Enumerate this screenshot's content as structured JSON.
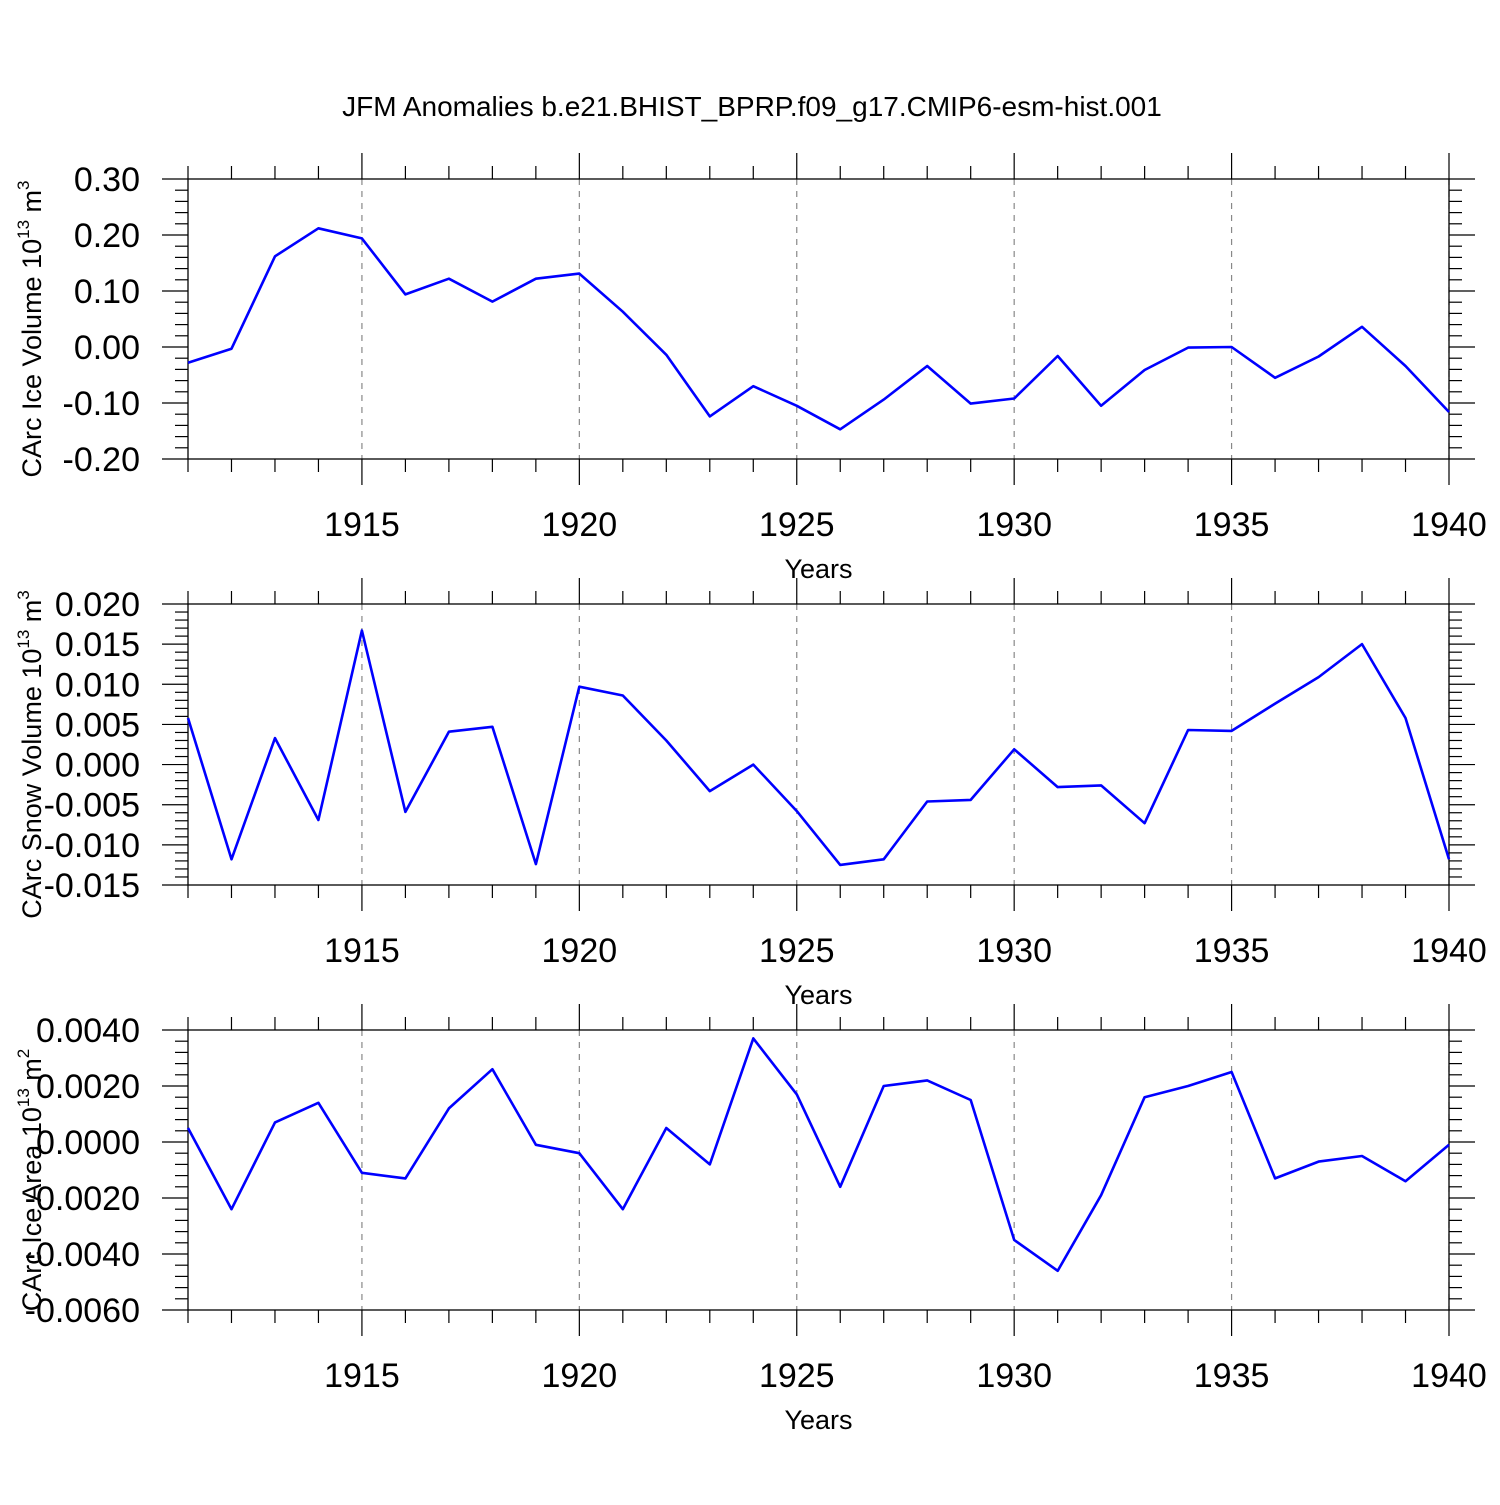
{
  "title": "JFM Anomalies b.e21.BHIST_BPRP.f09_g17.CMIP6-esm-hist.001",
  "line_color": "#0000ff",
  "grid_color": "#888888",
  "chart_data": [
    {
      "type": "line",
      "ylabel": "CArc Ice Volume 10",
      "ylabel_sup": "13",
      "ylabel_unit": "m",
      "ylabel_unit_sup": "3",
      "xlabel": "Years",
      "xlim": [
        1911,
        1940
      ],
      "ylim": [
        -0.2,
        0.3
      ],
      "yticks": [
        -0.2,
        -0.1,
        0.0,
        0.1,
        0.2,
        0.3
      ],
      "yticklabels": [
        "-0.20",
        "-0.10",
        "0.00",
        "0.10",
        "0.20",
        "0.30"
      ],
      "xticks": [
        1915,
        1920,
        1925,
        1930,
        1935,
        1940
      ],
      "xticklabels": [
        "1915",
        "1920",
        "1925",
        "1930",
        "1935",
        "1940"
      ],
      "x": [
        1911,
        1912,
        1913,
        1914,
        1915,
        1916,
        1917,
        1918,
        1919,
        1920,
        1921,
        1922,
        1923,
        1924,
        1925,
        1926,
        1927,
        1928,
        1929,
        1930,
        1931,
        1932,
        1933,
        1934,
        1935,
        1936,
        1937,
        1938,
        1939,
        1940
      ],
      "y": [
        -0.028,
        -0.003,
        0.162,
        0.212,
        0.194,
        0.094,
        0.122,
        0.081,
        0.122,
        0.131,
        0.063,
        -0.014,
        -0.124,
        -0.07,
        -0.105,
        -0.147,
        -0.094,
        -0.034,
        -0.101,
        -0.092,
        -0.016,
        -0.105,
        -0.041,
        -0.001,
        0.0,
        -0.055,
        -0.017,
        0.036,
        -0.034,
        -0.116
      ],
      "grid": "vertical dashed at major x ticks"
    },
    {
      "type": "line",
      "ylabel": "CArc Snow Volume 10",
      "ylabel_sup": "13",
      "ylabel_unit": "m",
      "ylabel_unit_sup": "3",
      "xlabel": "Years",
      "xlim": [
        1911,
        1940
      ],
      "ylim": [
        -0.015,
        0.02
      ],
      "yticks": [
        -0.015,
        -0.01,
        -0.005,
        0.0,
        0.005,
        0.01,
        0.015,
        0.02
      ],
      "yticklabels": [
        "-0.015",
        "-0.010",
        "-0.005",
        "0.000",
        "0.005",
        "0.010",
        "0.015",
        "0.020"
      ],
      "xticks": [
        1915,
        1920,
        1925,
        1930,
        1935,
        1940
      ],
      "xticklabels": [
        "1915",
        "1920",
        "1925",
        "1930",
        "1935",
        "1940"
      ],
      "x": [
        1911,
        1912,
        1913,
        1914,
        1915,
        1916,
        1917,
        1918,
        1919,
        1920,
        1921,
        1922,
        1923,
        1924,
        1925,
        1926,
        1927,
        1928,
        1929,
        1930,
        1931,
        1932,
        1933,
        1934,
        1935,
        1936,
        1937,
        1938,
        1939,
        1940
      ],
      "y": [
        0.0058,
        -0.0118,
        0.0033,
        -0.0069,
        0.0167,
        -0.0059,
        0.0041,
        0.0047,
        -0.0124,
        0.0097,
        0.0086,
        0.003,
        -0.0033,
        0.0,
        -0.0058,
        -0.0125,
        -0.0118,
        -0.0046,
        -0.0044,
        0.0019,
        -0.0028,
        -0.0026,
        -0.0073,
        0.0043,
        0.0042,
        0.0076,
        0.0109,
        0.015,
        0.0058,
        -0.0118
      ],
      "grid": "vertical dashed at major x ticks"
    },
    {
      "type": "line",
      "ylabel": "CArc Ice Area 10",
      "ylabel_sup": "13",
      "ylabel_unit": "m",
      "ylabel_unit_sup": "2",
      "xlabel": "Years",
      "xlim": [
        1911,
        1940
      ],
      "ylim": [
        -0.006,
        0.004
      ],
      "yticks": [
        -0.006,
        -0.004,
        -0.002,
        0.0,
        0.002,
        0.004
      ],
      "yticklabels": [
        "-0.0060",
        "-0.0040",
        "-0.0020",
        "0.0000",
        "0.0020",
        "0.0040"
      ],
      "xticks": [
        1915,
        1920,
        1925,
        1930,
        1935,
        1940
      ],
      "xticklabels": [
        "1915",
        "1920",
        "1925",
        "1930",
        "1935",
        "1940"
      ],
      "x": [
        1911,
        1912,
        1913,
        1914,
        1915,
        1916,
        1917,
        1918,
        1919,
        1920,
        1921,
        1922,
        1923,
        1924,
        1925,
        1926,
        1927,
        1928,
        1929,
        1930,
        1931,
        1932,
        1933,
        1934,
        1935,
        1936,
        1937,
        1938,
        1939,
        1940
      ],
      "y": [
        0.0005,
        -0.0024,
        0.0007,
        0.0014,
        -0.0011,
        -0.0013,
        0.0012,
        0.0026,
        -0.0001,
        -0.0004,
        -0.0024,
        0.0005,
        -0.0008,
        0.0037,
        0.0017,
        -0.0016,
        0.002,
        0.0022,
        0.0015,
        -0.0035,
        -0.0046,
        -0.0019,
        0.0016,
        0.002,
        0.0025,
        -0.0013,
        -0.0007,
        -0.0005,
        -0.0014,
        -0.0001
      ],
      "grid": "vertical dashed at major x ticks"
    }
  ]
}
